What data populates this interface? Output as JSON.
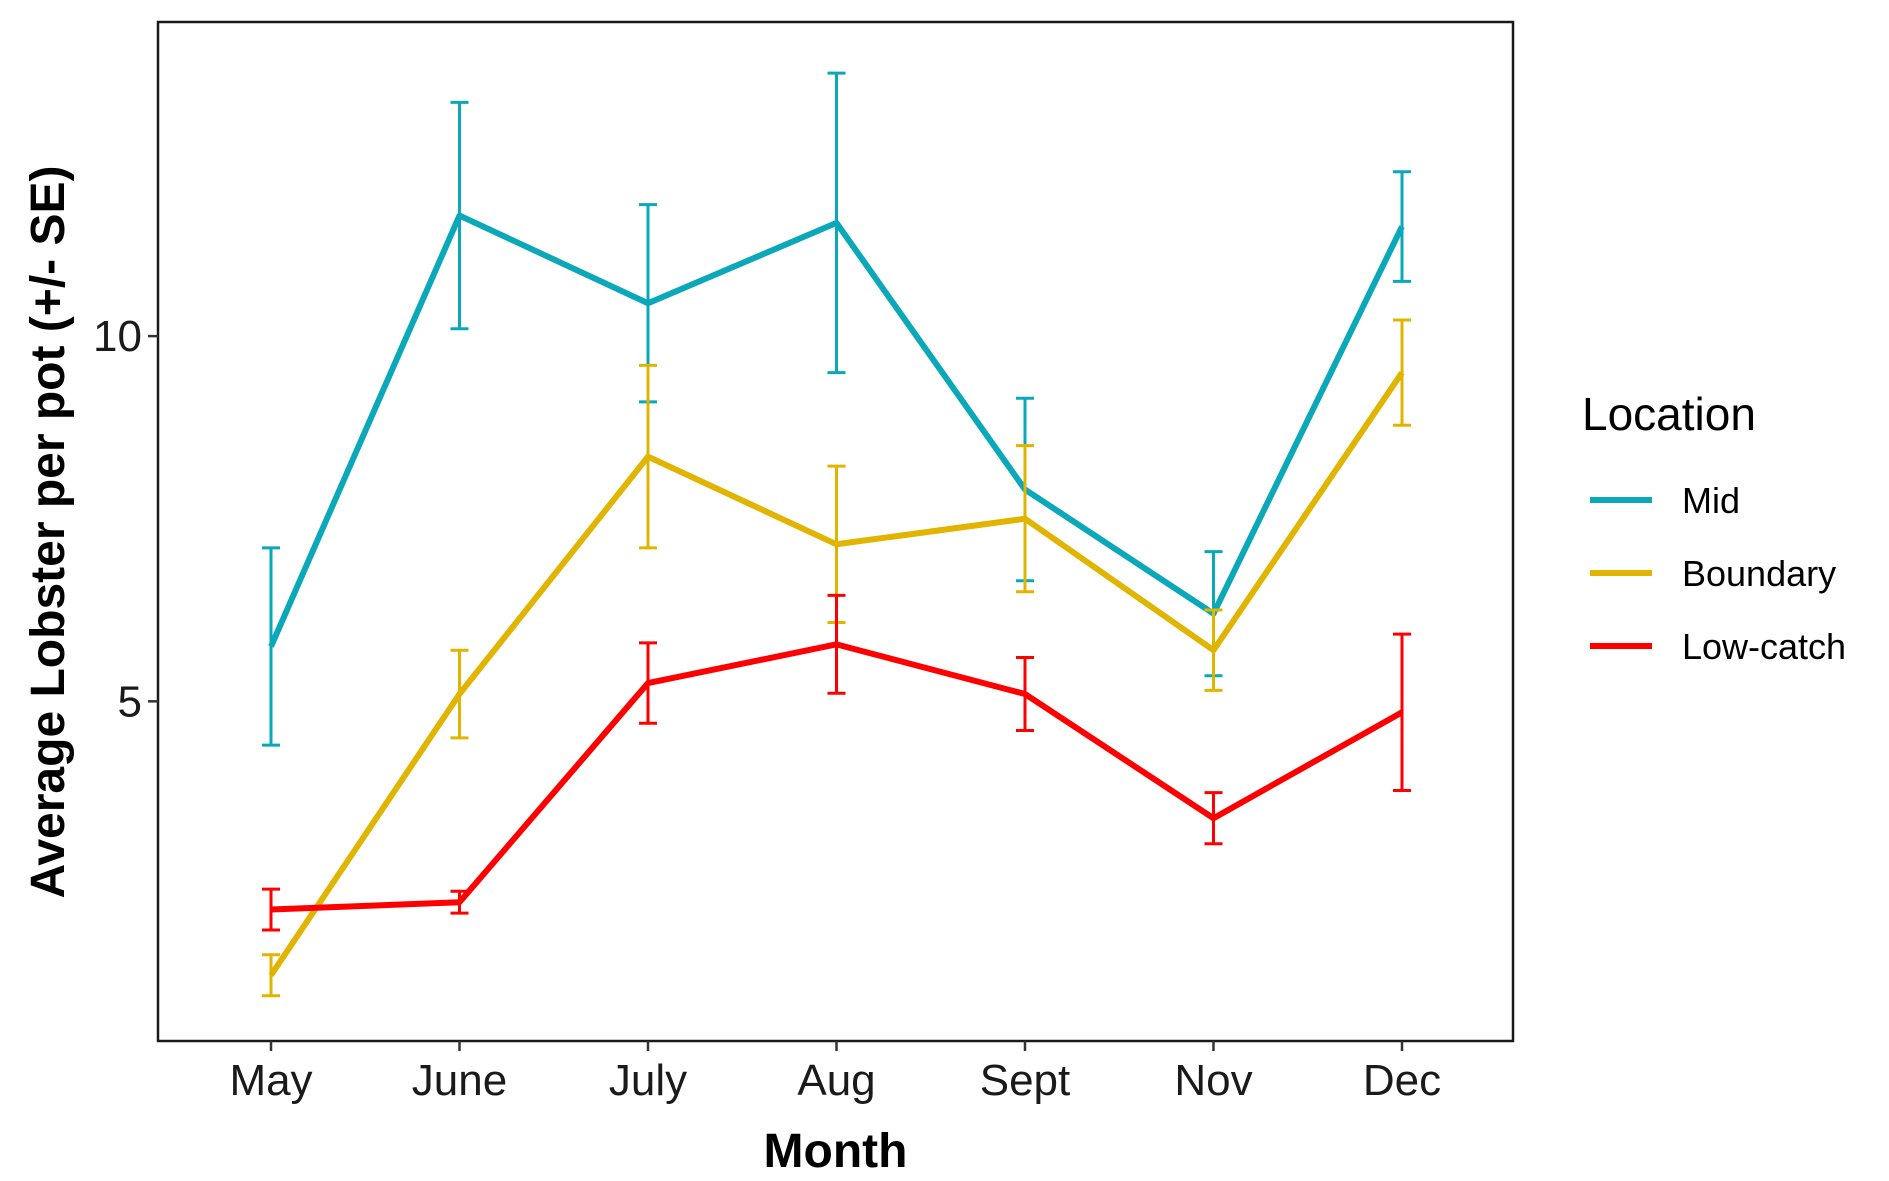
{
  "chart_data": {
    "type": "line",
    "xlabel": "Month",
    "ylabel": "Average Lobster per pot (+/- SE)",
    "categories": [
      "May",
      "June",
      "July",
      "Aug",
      "Sept",
      "Nov",
      "Dec"
    ],
    "ylim": [
      0.35,
      14.3
    ],
    "yticks": [
      5,
      10
    ],
    "grid": false,
    "legend": {
      "title": "Location",
      "placement": "right"
    },
    "series": [
      {
        "name": "Mid",
        "color": "#0aa8b8",
        "values": [
          5.75,
          11.65,
          10.45,
          11.55,
          7.9,
          6.2,
          11.5
        ],
        "se": [
          1.35,
          1.55,
          1.35,
          2.05,
          1.25,
          0.85,
          0.75
        ]
      },
      {
        "name": "Boundary",
        "color": "#e1b400",
        "values": [
          1.25,
          5.1,
          8.35,
          7.15,
          7.5,
          5.7,
          9.5
        ],
        "se": [
          0.28,
          0.6,
          1.25,
          1.07,
          1.0,
          0.55,
          0.72
        ]
      },
      {
        "name": "Low-catch",
        "color": "#ff0000",
        "values": [
          2.15,
          2.25,
          5.25,
          5.78,
          5.1,
          3.4,
          4.85
        ],
        "se": [
          0.28,
          0.15,
          0.55,
          0.67,
          0.5,
          0.35,
          1.07
        ]
      }
    ]
  }
}
